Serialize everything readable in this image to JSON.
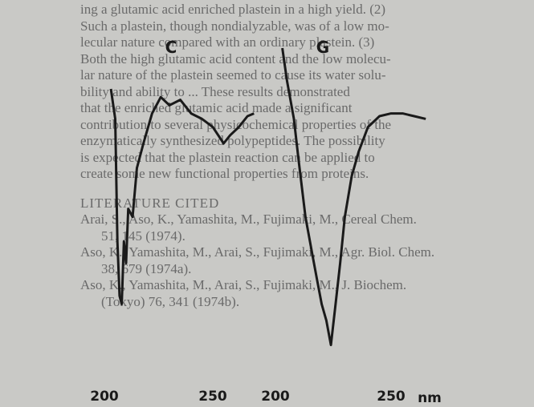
{
  "document": {
    "paragraph": [
      "ing a glutamic acid enriched plastein in a high yield. (2)",
      "Such a plastein, though nondialyzable, was of a low mo-",
      "lecular nature compared with an ordinary plastein. (3)",
      "Both the high glutamic acid content and the low molecu-",
      "lar nature of the plastein seemed to cause its water solu-",
      "bility and ability to ... These results demonstrated",
      "that the enriched glutamic acid made a significant",
      "contribution to several physicochemical properties of the",
      "enzymatically synthesized polypeptides. The possibility",
      "is expected that the plastein reaction can be applied to",
      "create some new functional properties from proteins."
    ],
    "references_heading": "LITERATURE CITED",
    "references": [
      "Arai, S., Aso, K., Yamashita, M., Fujimaki, M., Cereal Chem.",
      "51, 145 (1974).",
      "Aso, K., Yamashita, M., Arai, S., Fujimaki, M., Agr. Biol. Chem.",
      "38, 679 (1974a).",
      "Aso, K., Yamashita, M., Arai, S., Fujimaki, M., J. Biochem.",
      "(Tokyo) 76, 341 (1974b)."
    ]
  },
  "chart_data": [
    {
      "type": "line",
      "title": "C",
      "xlim": [
        200,
        270
      ],
      "xticks": [
        200,
        250
      ],
      "ylim": [
        -15,
        100
      ],
      "color": "#1a1a1a",
      "x": [
        203,
        205,
        206,
        207,
        208,
        209,
        210,
        211,
        213,
        215,
        218,
        222,
        226,
        230,
        235,
        240,
        245,
        250,
        255,
        258,
        262,
        266,
        269
      ],
      "values": [
        85,
        74,
        29,
        9,
        6,
        29,
        21,
        41,
        38,
        56,
        65,
        76,
        82,
        79,
        81,
        76,
        74,
        71,
        65,
        68,
        71,
        75,
        76
      ]
    },
    {
      "type": "line",
      "title": "G",
      "x_label": "nm",
      "xlim": [
        200,
        270
      ],
      "xticks": [
        200,
        250
      ],
      "ylim": [
        -15,
        100
      ],
      "color": "#1a1a1a",
      "x": [
        203,
        205,
        208,
        210,
        213,
        216,
        218,
        220,
        222,
        224,
        226,
        228,
        230,
        233,
        236,
        240,
        245,
        250,
        255,
        260,
        265
      ],
      "values": [
        100,
        88,
        74,
        59,
        38,
        24,
        15,
        6,
        0,
        -9,
        6,
        21,
        38,
        53,
        62,
        71,
        75,
        76,
        76,
        75,
        74
      ]
    }
  ]
}
